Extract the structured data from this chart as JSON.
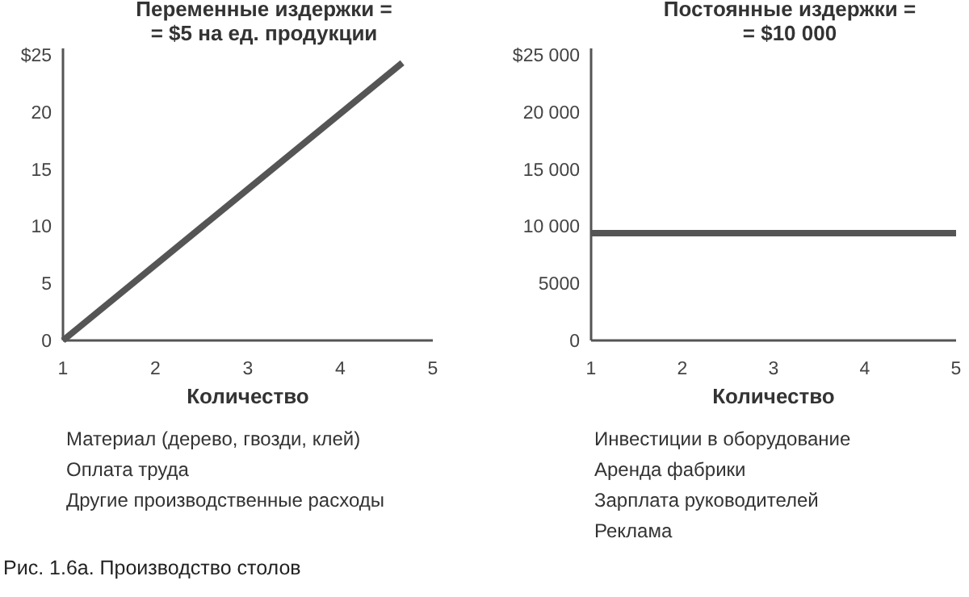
{
  "chart_data": [
    {
      "type": "line",
      "title": "Переменные издержки =\n= $5 на ед. продукции",
      "xlabel": "Количество",
      "x": [
        1,
        4.67
      ],
      "values": [
        0,
        24.3
      ],
      "color": "#555555",
      "xlim": [
        1,
        5
      ],
      "xticks": [
        1,
        2,
        3,
        4,
        5
      ],
      "ylim": [
        0,
        25
      ],
      "yticks": [
        0,
        5,
        10,
        15,
        20,
        {
          "value": 25,
          "label": "$25"
        }
      ],
      "annotations": [
        "Материал (дерево, гвозди, клей)",
        "Оплата труда",
        "Другие производственные расходы",
        "Рис. 1.6а. Производство столов"
      ]
    },
    {
      "type": "line",
      "title": "Постоянные издержки =\n= $10 000",
      "xlabel": "Количество",
      "x": [
        1,
        5
      ],
      "values": [
        9400,
        9400
      ],
      "color": "#555555",
      "xlim": [
        1,
        5
      ],
      "xticks": [
        1,
        2,
        3,
        4,
        5
      ],
      "ylim": [
        0,
        25000
      ],
      "yticks": [
        0,
        5000,
        {
          "value": 10000,
          "label": "10 000"
        },
        {
          "value": 15000,
          "label": "15 000"
        },
        {
          "value": 20000,
          "label": "20 000"
        },
        {
          "value": 25000,
          "label": "$25 000"
        }
      ],
      "annotations": [
        "Инвестиции в оборудование",
        "Аренда фабрики",
        "Зарплата руководителей",
        "Реклама"
      ]
    }
  ]
}
